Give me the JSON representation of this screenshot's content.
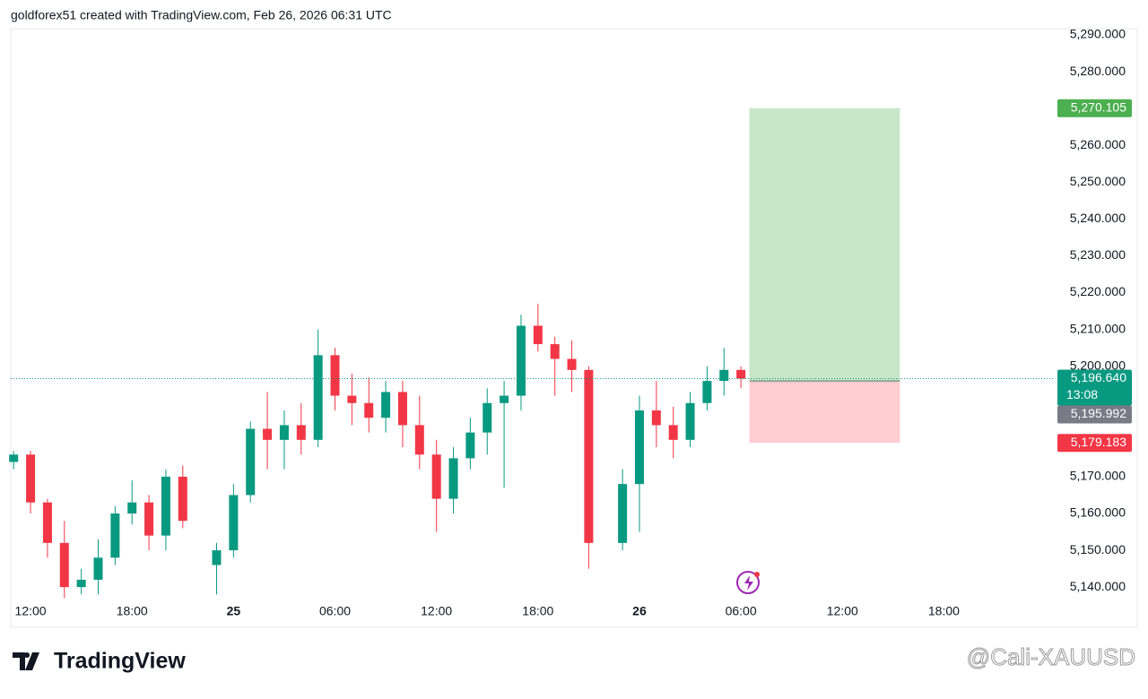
{
  "header": {
    "title": "goldforex51 created with TradingView.com, Feb 26, 2026 06:31 UTC"
  },
  "footer": {
    "brand": "TradingView",
    "watermark": "@Cali-XAUUSD"
  },
  "chart_data": {
    "type": "candlestick",
    "up_color": "#089981",
    "down_color": "#f23645",
    "x": [
      11,
      12,
      13,
      14,
      15,
      16,
      17,
      18,
      19,
      20,
      21,
      23,
      24,
      25,
      26,
      27,
      28,
      29,
      30,
      31,
      32,
      33,
      34,
      35,
      36,
      37,
      38,
      39,
      40,
      41,
      42,
      43,
      44,
      45,
      47,
      48,
      49,
      50,
      51,
      52,
      53,
      54
    ],
    "open": [
      5174,
      5176,
      5163,
      5152,
      5140,
      5142,
      5148,
      5160,
      5163,
      5154,
      5170,
      5146,
      5150,
      5165,
      5183,
      5180,
      5184,
      5180,
      5203,
      5192,
      5190,
      5186,
      5193,
      5184,
      5176,
      5164,
      5175,
      5182,
      5190,
      5192,
      5211,
      5206,
      5202,
      5199,
      5152,
      5168,
      5188,
      5184,
      5180,
      5190,
      5196,
      5199
    ],
    "high": [
      5177,
      5177,
      5164,
      5158,
      5145,
      5153,
      5162,
      5169,
      5165,
      5172,
      5173,
      5152,
      5168,
      5185,
      5193,
      5188,
      5190,
      5210,
      5205,
      5198,
      5197,
      5196,
      5196,
      5192,
      5180,
      5178,
      5186,
      5194,
      5196,
      5214,
      5217,
      5208,
      5207,
      5200,
      5172,
      5192,
      5196,
      5189,
      5193,
      5200,
      5205,
      5200
    ],
    "low": [
      5172,
      5160,
      5148,
      5137,
      5138,
      5138,
      5146,
      5157,
      5150,
      5150,
      5156,
      5138,
      5148,
      5163,
      5172,
      5172,
      5176,
      5178,
      5188,
      5184,
      5182,
      5182,
      5178,
      5172,
      5155,
      5160,
      5172,
      5176,
      5167,
      5188,
      5204,
      5192,
      5193,
      5145,
      5150,
      5155,
      5178,
      5175,
      5178,
      5188,
      5192,
      5194
    ],
    "close": [
      5176,
      5163,
      5152,
      5140,
      5142,
      5148,
      5160,
      5163,
      5154,
      5170,
      5158,
      5150,
      5165,
      5183,
      5180,
      5184,
      5180,
      5203,
      5192,
      5190,
      5186,
      5193,
      5184,
      5176,
      5164,
      5175,
      5182,
      5190,
      5192,
      5211,
      5206,
      5202,
      5199,
      5152,
      5168,
      5188,
      5184,
      5180,
      5190,
      5196,
      5199,
      5196.64
    ],
    "xlim": [
      10.83,
      72.5
    ],
    "xticks": [
      {
        "value": 12,
        "label": "12:00"
      },
      {
        "value": 18,
        "label": "18:00"
      },
      {
        "value": 24,
        "label": "25"
      },
      {
        "value": 30,
        "label": "06:00"
      },
      {
        "value": 36,
        "label": "12:00"
      },
      {
        "value": 42,
        "label": "18:00"
      },
      {
        "value": 48,
        "label": "26"
      },
      {
        "value": 54,
        "label": "06:00"
      },
      {
        "value": 60,
        "label": "12:00"
      },
      {
        "value": 66,
        "label": "18:00"
      }
    ],
    "ylim": [
      5137.6,
      5291.7
    ],
    "yticks": [
      {
        "value": 5140,
        "label": "5,140.000"
      },
      {
        "value": 5150,
        "label": "5,150.000"
      },
      {
        "value": 5160,
        "label": "5,160.000"
      },
      {
        "value": 5170,
        "label": "5,170.000"
      },
      {
        "value": 5200,
        "label": "5,200.000"
      },
      {
        "value": 5210,
        "label": "5,210.000"
      },
      {
        "value": 5220,
        "label": "5,220.000"
      },
      {
        "value": 5230,
        "label": "5,230.000"
      },
      {
        "value": 5240,
        "label": "5,240.000"
      },
      {
        "value": 5250,
        "label": "5,250.000"
      },
      {
        "value": 5260,
        "label": "5,260.000"
      },
      {
        "value": 5280,
        "label": "5,280.000"
      },
      {
        "value": 5290,
        "label": "5,290.000"
      }
    ],
    "position": {
      "x_range": [
        54.5,
        63.4
      ],
      "take_profit": 5270.105,
      "entry": 5195.992,
      "stop_loss": 5179.183,
      "profit_color": "#c8e6c9",
      "loss_color": "#ffcdd2"
    },
    "price_labels": [
      {
        "value": 5270.105,
        "label": "5,270.105",
        "color": "#4caf50"
      },
      {
        "value": 5196.64,
        "label": "5,196.640",
        "countdown": "13:08",
        "color": "#089981"
      },
      {
        "value": 5195.992,
        "label": "5,195.992",
        "color": "#787b86"
      },
      {
        "value": 5179.183,
        "label": "5,179.183",
        "color": "#f23645"
      }
    ]
  }
}
